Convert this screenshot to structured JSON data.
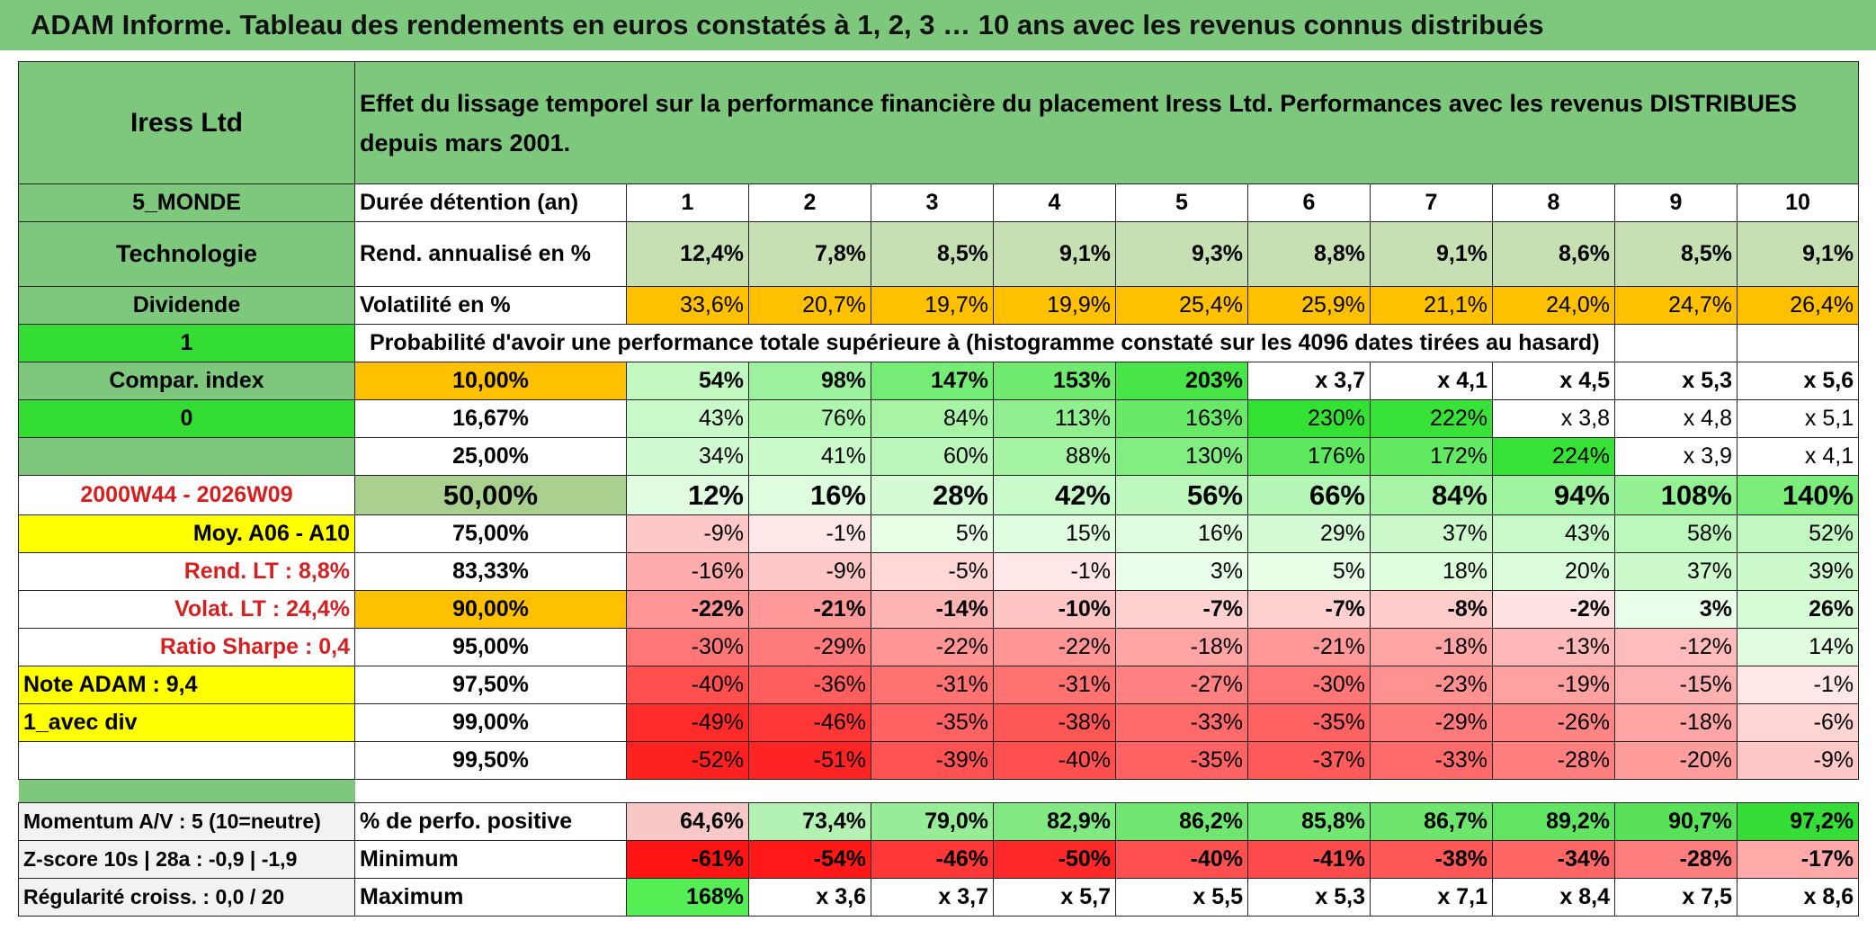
{
  "banner": "ADAM Informe. Tableau des rendements en euros constatés à 1, 2, 3 … 10 ans avec les revenus connus distribués",
  "fund": "Iress Ltd",
  "description": "Effet du lissage temporel sur la performance financière du placement Iress Ltd. Performances avec les revenus DISTRIBUES depuis mars 2001.",
  "left": {
    "zone": "5_MONDE",
    "sector": "Technologie",
    "type": "Dividende",
    "flag1": "1",
    "compar": "Compar. index",
    "flag0": "0",
    "period": "2000W44 - 2026W09",
    "moy": "Moy. A06 - A10",
    "rend_lt": "Rend. LT :   8,8%",
    "volat_lt": "Volat. LT :   24,4%",
    "sharpe": "Ratio Sharpe :    0,4",
    "note": "Note ADAM : 9,4",
    "avec_div": "1_avec div"
  },
  "labels": {
    "duree": "Durée détention (an)",
    "rend": "Rend. annualisé en %",
    "vol": "Volatilité en %",
    "prob": "Probabilité d'avoir une performance totale supérieure à (histogramme constaté sur les 4096 dates tirées au hasard)"
  },
  "years": [
    "1",
    "2",
    "3",
    "4",
    "5",
    "6",
    "7",
    "8",
    "9",
    "10"
  ],
  "rend": [
    "12,4%",
    "7,8%",
    "8,5%",
    "9,1%",
    "9,3%",
    "8,8%",
    "9,1%",
    "8,6%",
    "8,5%",
    "9,1%"
  ],
  "vol": [
    "33,6%",
    "20,7%",
    "19,7%",
    "19,9%",
    "25,4%",
    "25,9%",
    "21,1%",
    "24,0%",
    "24,7%",
    "26,4%"
  ],
  "quantiles": [
    {
      "p": "10,00%",
      "v": [
        "54%",
        "98%",
        "147%",
        "153%",
        "203%",
        "x 3,7",
        "x 4,1",
        "x 4,5",
        "x 5,3",
        "x 5,6"
      ]
    },
    {
      "p": "16,67%",
      "v": [
        "43%",
        "76%",
        "84%",
        "113%",
        "163%",
        "230%",
        "222%",
        "x 3,8",
        "x 4,8",
        "x 5,1"
      ]
    },
    {
      "p": "25,00%",
      "v": [
        "34%",
        "41%",
        "60%",
        "88%",
        "130%",
        "176%",
        "172%",
        "224%",
        "x 3,9",
        "x 4,1"
      ]
    },
    {
      "p": "50,00%",
      "v": [
        "12%",
        "16%",
        "28%",
        "42%",
        "56%",
        "66%",
        "84%",
        "94%",
        "108%",
        "140%"
      ]
    },
    {
      "p": "75,00%",
      "v": [
        "-9%",
        "-1%",
        "5%",
        "15%",
        "16%",
        "29%",
        "37%",
        "43%",
        "58%",
        "52%"
      ]
    },
    {
      "p": "83,33%",
      "v": [
        "-16%",
        "-9%",
        "-5%",
        "-1%",
        "3%",
        "5%",
        "18%",
        "20%",
        "37%",
        "39%"
      ]
    },
    {
      "p": "90,00%",
      "v": [
        "-22%",
        "-21%",
        "-14%",
        "-10%",
        "-7%",
        "-7%",
        "-8%",
        "-2%",
        "3%",
        "26%"
      ]
    },
    {
      "p": "95,00%",
      "v": [
        "-30%",
        "-29%",
        "-22%",
        "-22%",
        "-18%",
        "-21%",
        "-18%",
        "-13%",
        "-12%",
        "14%"
      ]
    },
    {
      "p": "97,50%",
      "v": [
        "-40%",
        "-36%",
        "-31%",
        "-31%",
        "-27%",
        "-30%",
        "-23%",
        "-19%",
        "-15%",
        "-1%"
      ]
    },
    {
      "p": "99,00%",
      "v": [
        "-49%",
        "-46%",
        "-35%",
        "-38%",
        "-33%",
        "-35%",
        "-29%",
        "-26%",
        "-18%",
        "-6%"
      ]
    },
    {
      "p": "99,50%",
      "v": [
        "-52%",
        "-51%",
        "-39%",
        "-40%",
        "-35%",
        "-37%",
        "-33%",
        "-28%",
        "-20%",
        "-9%"
      ]
    }
  ],
  "footer": {
    "momentum": "Momentum A/V : 5 (10=neutre)",
    "zscore": "Z-score 10s | 28a : -0,9 | -1,9",
    "regul": "Régularité croiss. : 0,0 / 20",
    "pos_label": "% de perfo. positive",
    "min_label": "Minimum",
    "max_label": "Maximum",
    "pos": [
      "64,6%",
      "73,4%",
      "79,0%",
      "82,9%",
      "86,2%",
      "85,8%",
      "86,7%",
      "89,2%",
      "90,7%",
      "97,2%"
    ],
    "min": [
      "-61%",
      "-54%",
      "-46%",
      "-50%",
      "-40%",
      "-41%",
      "-38%",
      "-34%",
      "-28%",
      "-17%"
    ],
    "max": [
      "168%",
      "x 3,6",
      "x 3,7",
      "x 5,7",
      "x 5,5",
      "x 5,3",
      "x 7,1",
      "x 8,4",
      "x 7,5",
      "x 8,6"
    ]
  },
  "colors": {
    "green_header": "#7ec87e",
    "lightgreen": "#c6e0b4",
    "orange": "#ffc000",
    "yellow": "#ffff00",
    "bright_green": "#33dd33",
    "red": "#d42020"
  }
}
